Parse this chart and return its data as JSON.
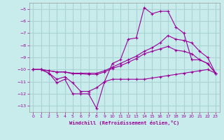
{
  "xlabel": "Windchill (Refroidissement éolien,°C)",
  "background_color": "#c8ecec",
  "grid_color": "#aad4d4",
  "line_color": "#990099",
  "xlim": [
    -0.5,
    23.5
  ],
  "ylim": [
    -13.5,
    -4.5
  ],
  "yticks": [
    -13,
    -12,
    -11,
    -10,
    -9,
    -8,
    -7,
    -6,
    -5
  ],
  "xticks": [
    0,
    1,
    2,
    3,
    4,
    5,
    6,
    7,
    8,
    9,
    10,
    11,
    12,
    13,
    14,
    15,
    16,
    17,
    18,
    19,
    20,
    21,
    22,
    23
  ],
  "series": [
    {
      "x": [
        0,
        1,
        2,
        3,
        4,
        5,
        6,
        7,
        8,
        9,
        10,
        11,
        12,
        13,
        14,
        15,
        16,
        17,
        18,
        19,
        20,
        21,
        22,
        23
      ],
      "y": [
        -10.0,
        -10.0,
        -10.3,
        -11.1,
        -10.8,
        -12.0,
        -12.0,
        -12.0,
        -13.2,
        -11.0,
        -9.5,
        -9.2,
        -7.5,
        -7.4,
        -4.9,
        -5.4,
        -5.2,
        -5.2,
        -6.5,
        -7.0,
        -9.2,
        -9.2,
        -9.5,
        -10.3
      ]
    },
    {
      "x": [
        0,
        1,
        2,
        3,
        4,
        5,
        6,
        7,
        8,
        9,
        10,
        11,
        12,
        13,
        14,
        15,
        16,
        17,
        18,
        19,
        20,
        21,
        22,
        23
      ],
      "y": [
        -10.0,
        -10.0,
        -10.1,
        -10.2,
        -10.2,
        -10.3,
        -10.3,
        -10.3,
        -10.3,
        -10.1,
        -9.8,
        -9.5,
        -9.2,
        -8.9,
        -8.5,
        -8.2,
        -7.8,
        -7.2,
        -7.5,
        -7.6,
        -7.8,
        -8.5,
        -9.0,
        -10.3
      ]
    },
    {
      "x": [
        0,
        1,
        2,
        3,
        4,
        5,
        6,
        7,
        8,
        9,
        10,
        11,
        12,
        13,
        14,
        15,
        16,
        17,
        18,
        19,
        20,
        21,
        22,
        23
      ],
      "y": [
        -10.0,
        -10.0,
        -10.1,
        -10.2,
        -10.2,
        -10.35,
        -10.35,
        -10.4,
        -10.4,
        -10.2,
        -9.9,
        -9.7,
        -9.4,
        -9.1,
        -8.7,
        -8.5,
        -8.3,
        -8.1,
        -8.4,
        -8.5,
        -8.7,
        -9.2,
        -9.5,
        -10.3
      ]
    },
    {
      "x": [
        0,
        1,
        2,
        3,
        4,
        5,
        6,
        7,
        8,
        9,
        10,
        11,
        12,
        13,
        14,
        15,
        16,
        17,
        18,
        19,
        20,
        21,
        22,
        23
      ],
      "y": [
        -10.0,
        -10.0,
        -10.3,
        -10.8,
        -10.6,
        -11.1,
        -11.8,
        -11.8,
        -11.5,
        -11.0,
        -10.8,
        -10.8,
        -10.8,
        -10.8,
        -10.8,
        -10.7,
        -10.6,
        -10.5,
        -10.4,
        -10.3,
        -10.2,
        -10.1,
        -10.0,
        -10.3
      ]
    }
  ]
}
